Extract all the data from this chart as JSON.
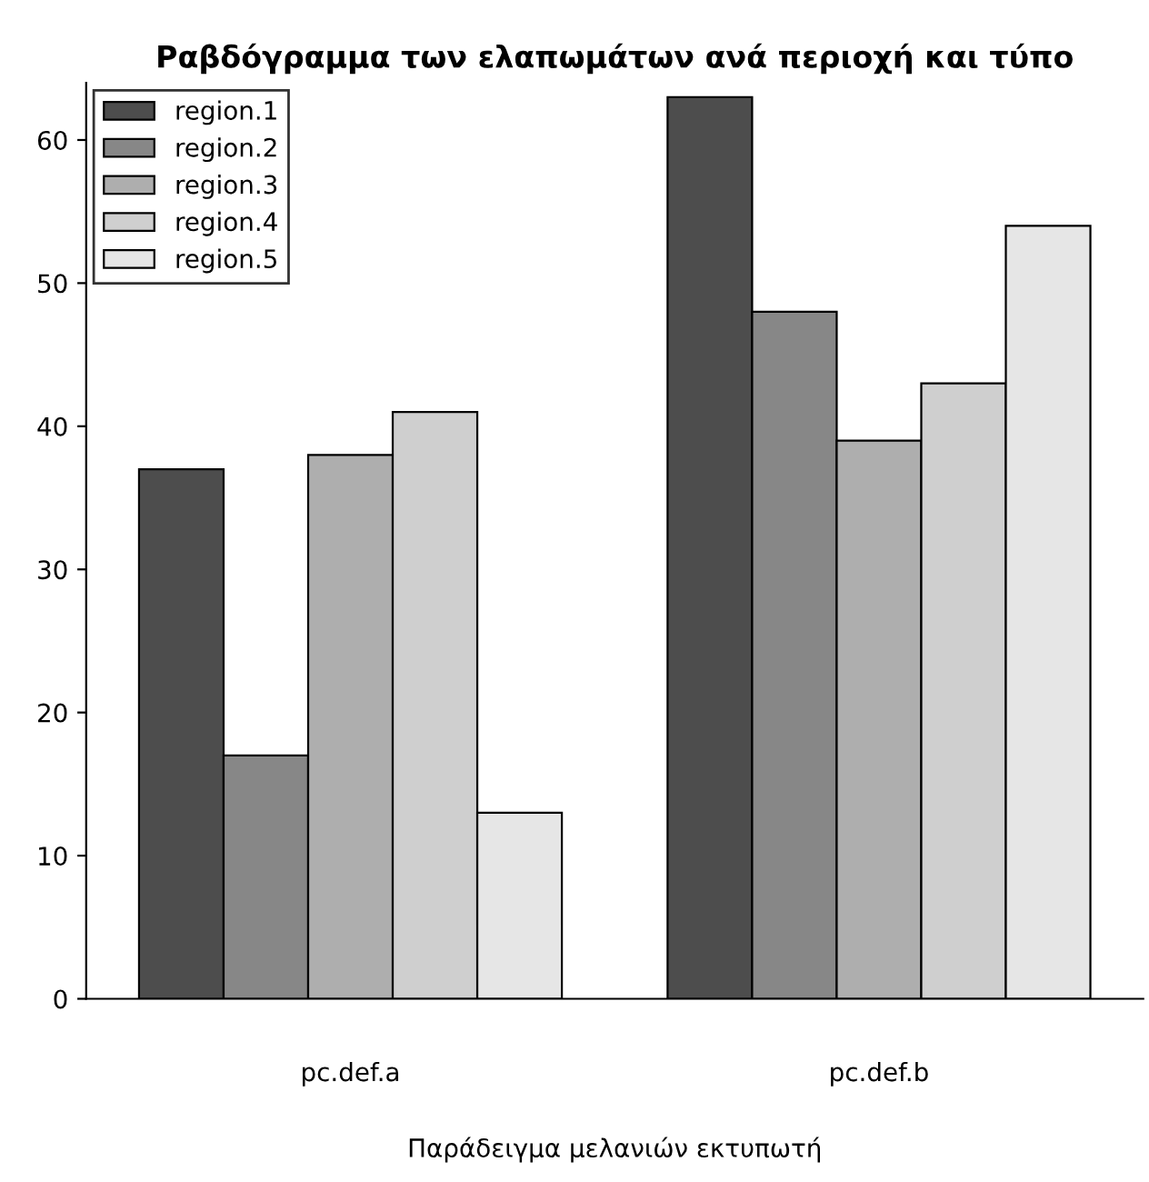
{
  "chart_data": {
    "type": "bar",
    "title": "Ραβδόγραμμα των ελαπωμάτων ανά περιοχή και τύπο",
    "xlabel": "Παράδειγμα μελανιών εκτυπωτή",
    "categories": [
      "pc.def.a",
      "pc.def.b"
    ],
    "series": [
      {
        "name": "region.1",
        "color": "#4d4d4d",
        "values": [
          37,
          63
        ]
      },
      {
        "name": "region.2",
        "color": "#878787",
        "values": [
          17,
          48
        ]
      },
      {
        "name": "region.3",
        "color": "#aeaeae",
        "values": [
          38,
          39
        ]
      },
      {
        "name": "region.4",
        "color": "#cfcfcf",
        "values": [
          41,
          43
        ]
      },
      {
        "name": "region.5",
        "color": "#e6e6e6",
        "values": [
          13,
          54
        ]
      }
    ],
    "ylim": [
      0,
      64
    ],
    "yticks": [
      0,
      10,
      20,
      30,
      40,
      50,
      60
    ],
    "grid": false,
    "legend": "top left"
  }
}
